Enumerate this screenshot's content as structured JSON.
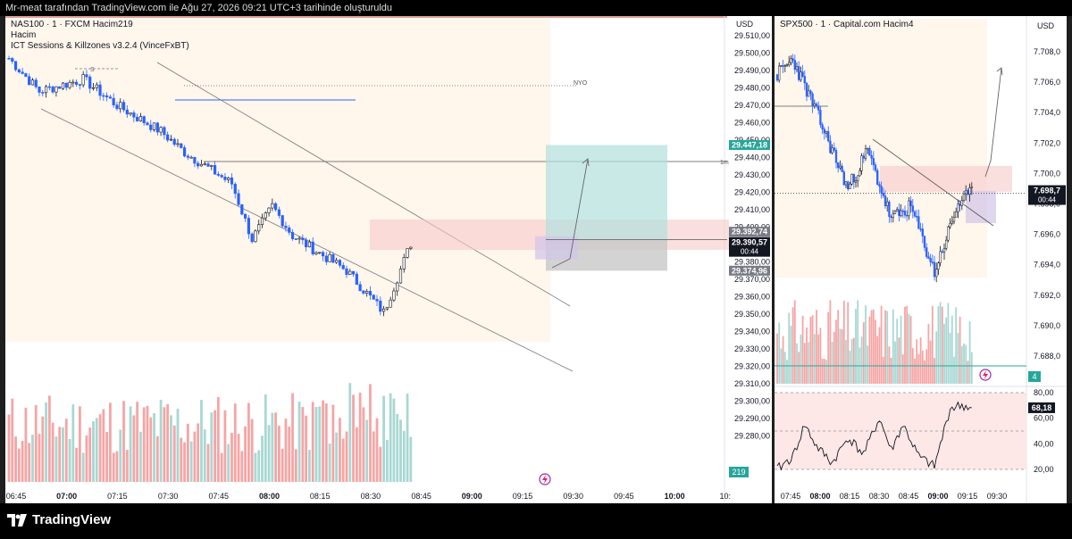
{
  "header": {
    "title": "Mr-meat tarafından TradingView.com ile Ağu 27, 2026 09:21 UTC+3 tarihinde oluşturuldu"
  },
  "footer": {
    "brand": "TradingView"
  },
  "left_chart": {
    "legend": {
      "symbol": "NAS100 · 1 · FXCM  Hacim219",
      "volume_label": "Hacim",
      "indicator": "ICT Sessions & Killzones v3.2.4 (VinceFxBT)"
    },
    "currency": "USD",
    "session_label": "NYO",
    "level_label": "1m",
    "price_tags": {
      "target": "29.447,18",
      "entry": "29.392,74",
      "current": "29.390,57",
      "countdown": "00:44",
      "stop": "29.374,96",
      "volume": "219"
    }
  },
  "right_chart": {
    "legend": {
      "symbol": "SPX500 · 1 · Capital.com  Hacim4"
    },
    "currency": "USD",
    "price_tags": {
      "current": "7.698,7",
      "countdown": "00:44",
      "volume": "4",
      "rsi": "68,18"
    }
  },
  "chart_data": [
    {
      "type": "candlestick",
      "name": "NAS100",
      "ylim": [
        29330,
        29515
      ],
      "yticks": [
        "29.510,00",
        "29.500,00",
        "29.490,00",
        "29.480,00",
        "29.470,00",
        "29.460,00",
        "29.450,00",
        "29.440,00",
        "29.430,00",
        "29.420,00",
        "29.410,00",
        "29.400,00",
        "29.390,00",
        "29.380,00",
        "29.370,00",
        "29.360,00",
        "29.350,00",
        "29.340,00",
        "29.330,00",
        "29.320,00",
        "29.310,00",
        "29.300,00",
        "29.290,00",
        "29.280,00"
      ],
      "xticks": [
        "06:45",
        "07:00",
        "07:15",
        "07:30",
        "07:45",
        "08:00",
        "08:15",
        "08:30",
        "08:45",
        "09:00",
        "09:15",
        "09:30",
        "09:45",
        "10:00",
        "10:"
      ],
      "key_points": {
        "start": 29497,
        "low_0730": 29470,
        "low_0800": 29443,
        "low_0830": 29393,
        "high_0840": 29412,
        "low_0905": 29351,
        "last": 29390.57
      },
      "levels": {
        "target": 29447.18,
        "entry": 29392.74,
        "stop": 29374.96
      }
    },
    {
      "type": "candlestick",
      "name": "SPX500",
      "ylim": [
        7691,
        7710
      ],
      "yticks": [
        "7.708,0",
        "7.706,0",
        "7.704,0",
        "7.702,0",
        "7.700,0",
        "7.698,0",
        "7.696,0",
        "7.694,0",
        "7.692,0",
        "7.690,0",
        "7.688,0"
      ],
      "xticks": [
        "07:45",
        "08:00",
        "08:15",
        "08:30",
        "08:45",
        "09:00",
        "09:15",
        "09:30"
      ],
      "key_points": {
        "start": 7706.5,
        "high_0805": 7707.5,
        "low_0820": 7699,
        "high_0830": 7701.5,
        "low_0840": 7697,
        "low_0908": 7693.5,
        "last": 7698.7
      },
      "rsi": {
        "ticks": [
          "80,00",
          "60,00",
          "40,00",
          "20,00"
        ],
        "last": 68.18
      }
    }
  ]
}
